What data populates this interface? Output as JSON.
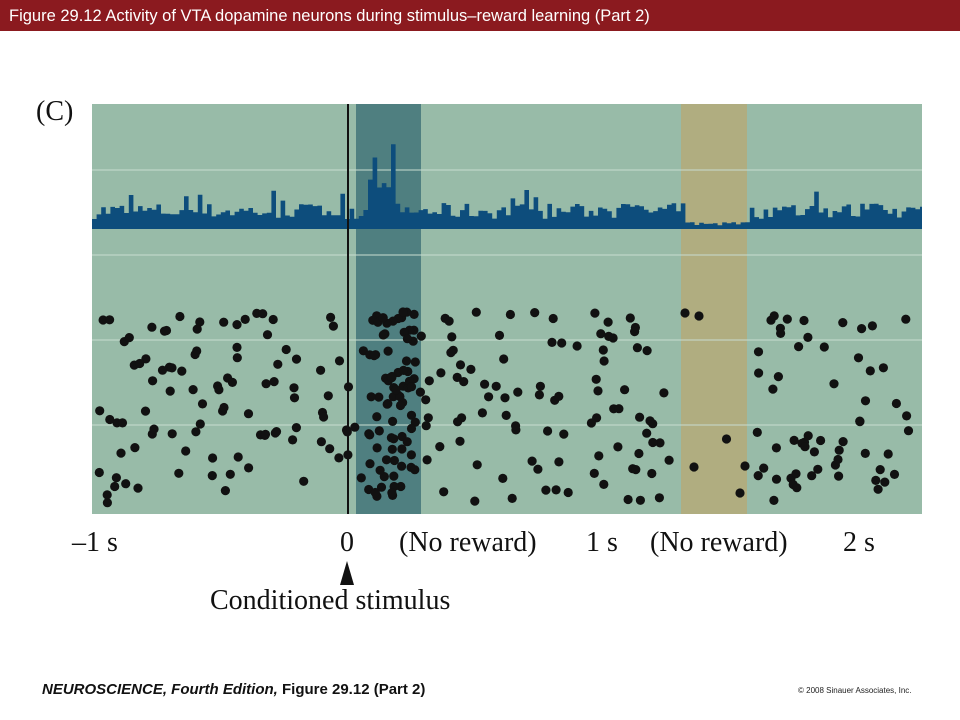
{
  "header": {
    "title": "Figure 29.12  Activity of VTA dopamine neurons during stimulus–reward learning (Part 2)"
  },
  "figure": {
    "panel_label": "(C)",
    "axis_labels": {
      "minus_one": "–1 s",
      "zero": "0",
      "no_reward_1": "(No reward)",
      "one": "1 s",
      "no_reward_2": "(No reward)",
      "two": "2 s"
    },
    "conditioned_stimulus": "Conditioned stimulus",
    "colors": {
      "background": "#98bba8",
      "stimulus_window": "#4f7f80",
      "reward_window": "#b0ad80",
      "histogram": "#0d4d7c",
      "spike": "#111111",
      "gridline": "#c9dcd0",
      "title_bar": "#8b1a1f"
    }
  },
  "footer": {
    "book": "NEUROSCIENCE, Fourth Edition,",
    "figure_ref": "Figure 29.12 (Part 2)",
    "copyright": "© 2008 Sinauer Associates, Inc."
  }
}
